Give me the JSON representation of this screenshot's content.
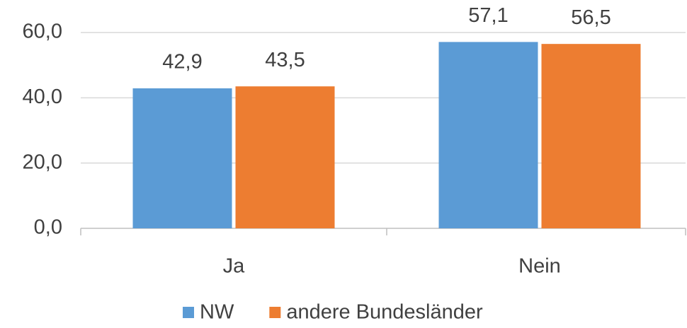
{
  "chart_data": {
    "type": "bar",
    "categories": [
      "Ja",
      "Nein"
    ],
    "series": [
      {
        "name": "NW",
        "color": "#5b9bd5",
        "values": [
          42.9,
          57.1
        ],
        "value_labels": [
          "42,9",
          "57,1"
        ]
      },
      {
        "name": "andere Bundesländer",
        "color": "#ed7d31",
        "values": [
          43.5,
          56.5
        ],
        "value_labels": [
          "43,5",
          "56,5"
        ]
      }
    ],
    "ylim": [
      0,
      60
    ],
    "yticks": [
      {
        "value": 0,
        "label": "0,0"
      },
      {
        "value": 20,
        "label": "20,0"
      },
      {
        "value": 40,
        "label": "40,0"
      },
      {
        "value": 60,
        "label": "60,0"
      }
    ],
    "grid": true,
    "legend": "bottom"
  }
}
